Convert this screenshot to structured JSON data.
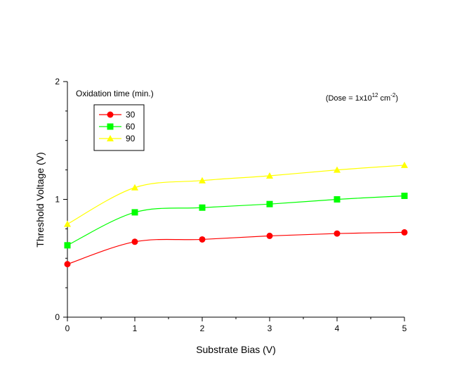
{
  "chart_data": {
    "type": "line",
    "title": "",
    "xlabel": "Substrate Bias (V)",
    "ylabel": "Threshold Voltage (V)",
    "xlim": [
      0,
      5
    ],
    "ylim": [
      0,
      2
    ],
    "x_ticks": [
      "0",
      "1",
      "2",
      "3",
      "4",
      "5"
    ],
    "y_ticks": [
      "0",
      "1",
      "2"
    ],
    "grid": false,
    "legend": {
      "title": "Oxidation time (min.)",
      "placement": "top-left"
    },
    "annotation": {
      "prefix": "(Dose = 1x10",
      "exp": "12",
      "unit": " cm",
      "unit_exp": "-2",
      "suffix": ")"
    },
    "x": [
      0,
      1,
      2,
      3,
      4,
      5
    ],
    "series": [
      {
        "name": "30",
        "marker": "circle",
        "color": "#ff0000",
        "values": [
          0.45,
          0.64,
          0.66,
          0.69,
          0.71,
          0.72
        ]
      },
      {
        "name": "60",
        "marker": "square",
        "color": "#00ff00",
        "values": [
          0.61,
          0.89,
          0.93,
          0.96,
          1.0,
          1.03
        ]
      },
      {
        "name": "90",
        "marker": "triangle",
        "color": "#ffff00",
        "values": [
          0.79,
          1.1,
          1.16,
          1.2,
          1.25,
          1.29
        ]
      }
    ]
  }
}
